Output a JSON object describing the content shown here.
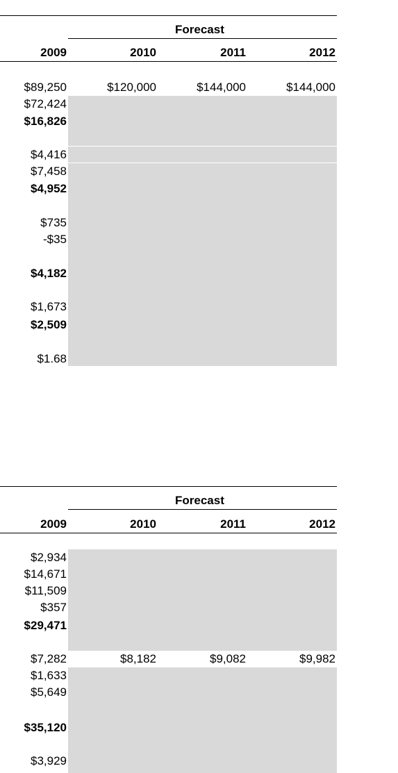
{
  "table1": {
    "forecast_label": "Forecast",
    "years": [
      "2009",
      "2010",
      "2011",
      "2012"
    ],
    "rows": [
      {
        "c2009": "$89,250",
        "c2010": "$120,000",
        "c2011": "$144,000",
        "c2012": "$144,000"
      },
      {
        "c2009": "$72,424"
      },
      {
        "c2009": "$16,826"
      },
      {
        "c2009": "$4,416"
      },
      {
        "c2009": "$7,458"
      },
      {
        "c2009": "$4,952"
      },
      {
        "c2009": "$735"
      },
      {
        "c2009": "-$35"
      },
      {
        "c2009": "$4,182"
      },
      {
        "c2009": "$1,673"
      },
      {
        "c2009": "$2,509"
      },
      {
        "c2009": "$1.68"
      }
    ]
  },
  "table2": {
    "forecast_label": "Forecast",
    "years": [
      "2009",
      "2010",
      "2011",
      "2012"
    ],
    "rows": [
      {
        "c2009": "$2,934"
      },
      {
        "c2009": "$14,671"
      },
      {
        "c2009": "$11,509"
      },
      {
        "c2009": "$357"
      },
      {
        "c2009": "$29,471"
      },
      {
        "c2009": "$7,282",
        "c2010": "$8,182",
        "c2011": "$9,082",
        "c2012": "$9,982"
      },
      {
        "c2009": "$1,633"
      },
      {
        "c2009": "$5,649"
      },
      {
        "c2009": "$35,120"
      },
      {
        "c2009": "$3,929"
      }
    ]
  }
}
